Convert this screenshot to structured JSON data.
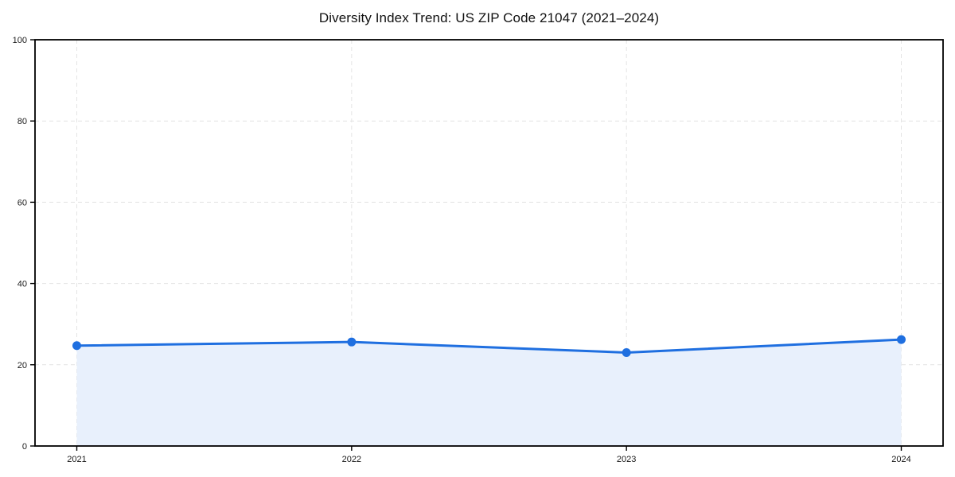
{
  "chart_data": {
    "type": "line",
    "title": "Diversity Index Trend: US ZIP Code 21047 (2021–2024)",
    "x": [
      "2021",
      "2022",
      "2023",
      "2024"
    ],
    "series": [
      {
        "name": "Diversity Index",
        "values": [
          24.7,
          25.6,
          23.0,
          26.2
        ]
      }
    ],
    "ylim": [
      0,
      100
    ],
    "yticks": [
      0,
      20,
      40,
      60,
      80,
      100
    ],
    "grid": true,
    "area_fill": true,
    "legend": "none",
    "colors": {
      "line": "#1f6fe0",
      "marker": "#1f6fe0",
      "area": "#e8f0fc",
      "grid": "#e4e4e4",
      "spine": "#000000",
      "tick_text": "#1a1a1a"
    }
  }
}
